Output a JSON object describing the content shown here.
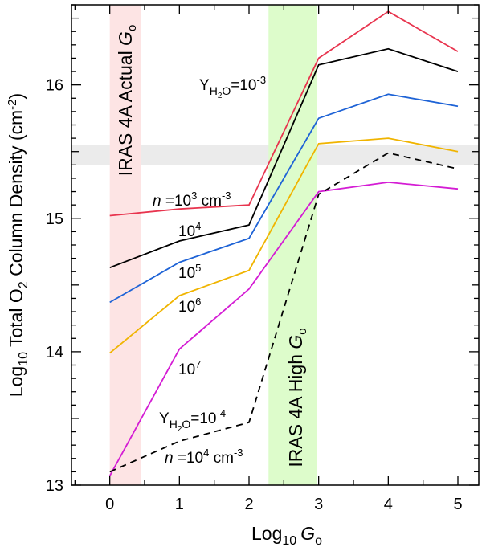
{
  "chart_data": {
    "type": "line",
    "xlabel": {
      "main": "Log",
      "sub": "10",
      "var": "G",
      "varsub": "o"
    },
    "ylabel": {
      "pre": "Log",
      "sub1": "10",
      "mid": " Total O",
      "sub2": "2",
      "post": " Column Density (cm",
      "sup": "-2",
      "end": ")"
    },
    "xlim": [
      -0.55,
      5.3
    ],
    "ylim": [
      13,
      16.6
    ],
    "xticks": [
      0,
      1,
      2,
      3,
      4,
      5
    ],
    "yticks": [
      13,
      14,
      15,
      16
    ],
    "bands": {
      "vertical_actual": {
        "x": [
          0,
          0.45
        ],
        "color": "#fde4e4",
        "label": {
          "main": "IRAS 4A Actual ",
          "var": "G",
          "varsub": "o"
        }
      },
      "vertical_high": {
        "x": [
          2.28,
          2.97
        ],
        "color": "#ddfccb",
        "label": {
          "main": "IRAS 4A High ",
          "var": "G",
          "varsub": "o"
        }
      },
      "horizontal_observed": {
        "y": [
          15.4,
          15.55
        ],
        "color": "#ebebeb"
      }
    },
    "x": [
      0,
      1,
      2,
      3,
      4,
      5
    ],
    "series": [
      {
        "name": "n=10^3 cm^-3, Y=10^-3",
        "color": "#e8344e",
        "dash": false,
        "values": [
          15.02,
          15.07,
          15.1,
          16.2,
          16.55,
          16.25
        ]
      },
      {
        "name": "n=10^4, Y=10^-3",
        "color": "#000000",
        "dash": false,
        "values": [
          14.63,
          14.83,
          14.95,
          16.15,
          16.27,
          16.1
        ]
      },
      {
        "name": "n=10^5, Y=10^-3",
        "color": "#1e63d6",
        "dash": false,
        "values": [
          14.37,
          14.67,
          14.85,
          15.75,
          15.93,
          15.84
        ]
      },
      {
        "name": "n=10^6, Y=10^-3",
        "color": "#f0b400",
        "dash": false,
        "values": [
          13.99,
          14.42,
          14.61,
          15.56,
          15.6,
          15.5
        ]
      },
      {
        "name": "n=10^7, Y=10^-3",
        "color": "#d41cd4",
        "dash": false,
        "values": [
          13.07,
          14.02,
          14.47,
          15.2,
          15.27,
          15.22
        ]
      },
      {
        "name": "n=10^4 cm^-3, Y=10^-4",
        "color": "#000000",
        "dash": true,
        "values": [
          13.1,
          13.33,
          13.47,
          15.18,
          15.49,
          15.37
        ]
      }
    ],
    "annotations": {
      "yh2o_top": {
        "base": "Y",
        "sub": "H",
        "sub2": "2",
        "subend": "O",
        "eq": "=10",
        "sup": "-3"
      },
      "yh2o_bottom": {
        "base": "Y",
        "sub": "H",
        "sub2": "2",
        "subend": "O",
        "eq": "=10",
        "sup": "-4"
      },
      "n3": {
        "var": "n",
        "eq": " =10",
        "sup": "3",
        "unit": " cm",
        "unitsup": "-3"
      },
      "n4": {
        "base": "10",
        "sup": "4"
      },
      "n5": {
        "base": "10",
        "sup": "5"
      },
      "n6": {
        "base": "10",
        "sup": "6"
      },
      "n7": {
        "base": "10",
        "sup": "7"
      },
      "n4_dashed": {
        "var": "n",
        "eq": " =10",
        "sup": "4",
        "unit": " cm",
        "unitsup": "-3"
      }
    }
  }
}
